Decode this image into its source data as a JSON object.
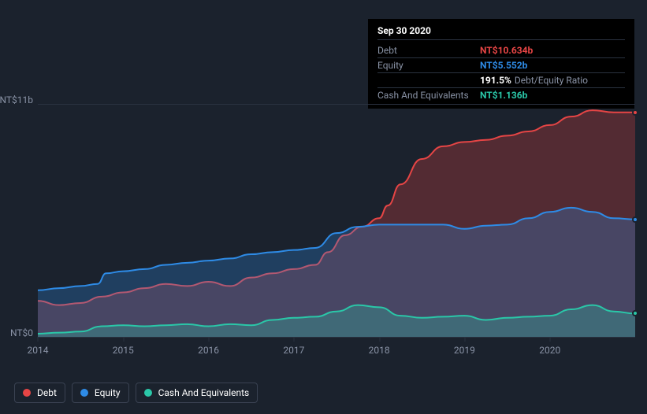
{
  "tooltip": {
    "date": "Sep 30 2020",
    "rows": [
      {
        "label": "Debt",
        "value": "NT$10.634b",
        "color": "#e64545"
      },
      {
        "label": "Equity",
        "value": "NT$5.552b",
        "color": "#2e8be6"
      },
      {
        "label": "",
        "value": "191.5%",
        "subtext": "Debt/Equity Ratio",
        "color": "#ffffff"
      },
      {
        "label": "Cash And Equivalents",
        "value": "NT$1.136b",
        "color": "#2ac7a8"
      }
    ]
  },
  "chart": {
    "type": "area",
    "background_color": "#1b222d",
    "grid_color": "#2a3240",
    "label_color": "#8a93a6",
    "label_fontsize": 12,
    "ylim": [
      0,
      11
    ],
    "yticks": [
      {
        "value": 0,
        "label": "NT$0"
      },
      {
        "value": 11,
        "label": "NT$11b"
      }
    ],
    "xlim": [
      2014,
      2021
    ],
    "xticks": [
      {
        "value": 2014,
        "label": "2014"
      },
      {
        "value": 2015,
        "label": "2015"
      },
      {
        "value": 2016,
        "label": "2016"
      },
      {
        "value": 2017,
        "label": "2017"
      },
      {
        "value": 2018,
        "label": "2018"
      },
      {
        "value": 2019,
        "label": "2019"
      },
      {
        "value": 2020,
        "label": "2020"
      }
    ],
    "series": [
      {
        "name": "Debt",
        "color": "#e64545",
        "fill_opacity": 0.28,
        "line_width": 2,
        "points": [
          [
            2014.0,
            1.7
          ],
          [
            2014.25,
            1.5
          ],
          [
            2014.5,
            1.6
          ],
          [
            2014.75,
            1.9
          ],
          [
            2015.0,
            2.1
          ],
          [
            2015.25,
            2.3
          ],
          [
            2015.5,
            2.5
          ],
          [
            2015.75,
            2.4
          ],
          [
            2016.0,
            2.6
          ],
          [
            2016.25,
            2.4
          ],
          [
            2016.5,
            2.8
          ],
          [
            2016.75,
            3.0
          ],
          [
            2017.0,
            3.2
          ],
          [
            2017.25,
            3.4
          ],
          [
            2017.4,
            4.0
          ],
          [
            2017.6,
            4.8
          ],
          [
            2017.8,
            5.2
          ],
          [
            2018.0,
            5.6
          ],
          [
            2018.1,
            6.2
          ],
          [
            2018.25,
            7.2
          ],
          [
            2018.5,
            8.4
          ],
          [
            2018.75,
            9.0
          ],
          [
            2019.0,
            9.2
          ],
          [
            2019.25,
            9.3
          ],
          [
            2019.5,
            9.5
          ],
          [
            2019.75,
            9.7
          ],
          [
            2020.0,
            10.0
          ],
          [
            2020.25,
            10.4
          ],
          [
            2020.5,
            10.7
          ],
          [
            2020.75,
            10.6
          ],
          [
            2021.0,
            10.6
          ]
        ]
      },
      {
        "name": "Equity",
        "color": "#2e8be6",
        "fill_opacity": 0.28,
        "line_width": 2,
        "points": [
          [
            2014.0,
            2.2
          ],
          [
            2014.25,
            2.3
          ],
          [
            2014.5,
            2.4
          ],
          [
            2014.7,
            2.5
          ],
          [
            2014.8,
            3.0
          ],
          [
            2015.0,
            3.1
          ],
          [
            2015.25,
            3.2
          ],
          [
            2015.5,
            3.4
          ],
          [
            2015.75,
            3.5
          ],
          [
            2016.0,
            3.6
          ],
          [
            2016.25,
            3.7
          ],
          [
            2016.5,
            3.9
          ],
          [
            2016.75,
            4.0
          ],
          [
            2017.0,
            4.1
          ],
          [
            2017.25,
            4.2
          ],
          [
            2017.5,
            4.9
          ],
          [
            2017.75,
            5.2
          ],
          [
            2018.0,
            5.3
          ],
          [
            2018.25,
            5.3
          ],
          [
            2018.5,
            5.3
          ],
          [
            2018.75,
            5.3
          ],
          [
            2019.0,
            5.1
          ],
          [
            2019.25,
            5.25
          ],
          [
            2019.5,
            5.3
          ],
          [
            2019.75,
            5.6
          ],
          [
            2020.0,
            5.9
          ],
          [
            2020.25,
            6.1
          ],
          [
            2020.5,
            5.9
          ],
          [
            2020.75,
            5.6
          ],
          [
            2021.0,
            5.55
          ]
        ]
      },
      {
        "name": "Cash And Equivalents",
        "color": "#2ac7a8",
        "fill_opacity": 0.28,
        "line_width": 2,
        "points": [
          [
            2014.0,
            0.15
          ],
          [
            2014.25,
            0.2
          ],
          [
            2014.5,
            0.25
          ],
          [
            2014.75,
            0.5
          ],
          [
            2015.0,
            0.55
          ],
          [
            2015.25,
            0.5
          ],
          [
            2015.5,
            0.55
          ],
          [
            2015.75,
            0.6
          ],
          [
            2016.0,
            0.5
          ],
          [
            2016.25,
            0.6
          ],
          [
            2016.5,
            0.55
          ],
          [
            2016.75,
            0.8
          ],
          [
            2017.0,
            0.9
          ],
          [
            2017.25,
            0.95
          ],
          [
            2017.5,
            1.2
          ],
          [
            2017.75,
            1.5
          ],
          [
            2018.0,
            1.4
          ],
          [
            2018.25,
            1.0
          ],
          [
            2018.5,
            0.9
          ],
          [
            2018.75,
            0.95
          ],
          [
            2019.0,
            1.0
          ],
          [
            2019.25,
            0.8
          ],
          [
            2019.5,
            0.9
          ],
          [
            2019.75,
            0.95
          ],
          [
            2020.0,
            1.0
          ],
          [
            2020.25,
            1.3
          ],
          [
            2020.5,
            1.5
          ],
          [
            2020.75,
            1.2
          ],
          [
            2021.0,
            1.1
          ]
        ]
      }
    ]
  },
  "legend": [
    {
      "label": "Debt",
      "color": "#e64545"
    },
    {
      "label": "Equity",
      "color": "#2e8be6"
    },
    {
      "label": "Cash And Equivalents",
      "color": "#2ac7a8"
    }
  ]
}
